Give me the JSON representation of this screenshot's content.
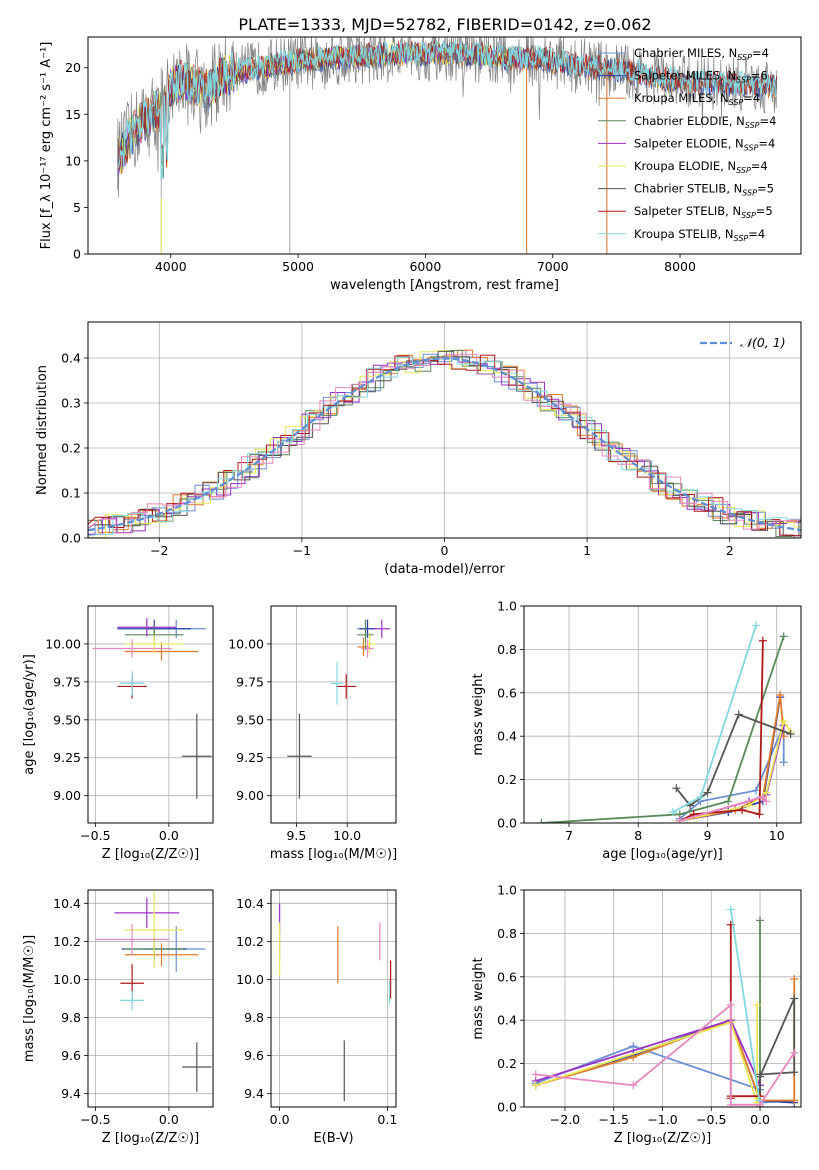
{
  "figure_title": "PLATE=1333, MJD=52782, FIBERID=0142, z=0.062",
  "colors": [
    "#6b8ed6",
    "#2a3fa0",
    "#e07b2a",
    "#5a8a5a",
    "#9b30c8",
    "#e8e85a",
    "#555555",
    "#b01818",
    "#80d8e0",
    "#e888c0"
  ],
  "legend_spectrum": [
    "Chabrier MILES, N",
    "Salpeter MILES, N",
    "Kroupa MILES, N",
    "Chabrier ELODIE, N",
    "Salpeter ELODIE, N",
    "Kroupa ELODIE, N",
    "Chabrier STELIB, N",
    "Salpeter STELIB, N",
    "Kroupa STELIB, N"
  ],
  "legend_spectrum_sub": "SSP",
  "legend_spectrum_n": [
    "4",
    "6",
    "4",
    "4",
    "4",
    "4",
    "5",
    "5",
    "4"
  ],
  "legend_hist": "𝒩(0, 1)",
  "chart_data": [
    {
      "type": "line",
      "xlabel": "wavelength [Angstrom, rest frame]",
      "ylabel": "Flux [f_λ 10⁻¹⁷ erg cm⁻² s⁻¹ A⁻¹]",
      "xlim": [
        3350,
        8950
      ],
      "ylim": [
        0,
        23.3
      ],
      "xticks": [
        "4000",
        "5000",
        "6000",
        "7000",
        "8000"
      ],
      "xtick_values": [
        4000,
        5000,
        6000,
        7000,
        8000
      ],
      "yticks": [
        "0",
        "5",
        "10",
        "15",
        "20"
      ],
      "ytick_values": [
        0,
        5,
        10,
        15,
        20
      ],
      "continuum_x": [
        3600,
        3700,
        3800,
        3900,
        3950,
        4000,
        4100,
        4200,
        4300,
        4400,
        4500,
        4700,
        4900,
        5200,
        5500,
        5800,
        6000,
        6300,
        6600,
        6900,
        7200,
        7500,
        7800,
        8000,
        8300,
        8600,
        8750
      ],
      "continuum_y": [
        10.5,
        13,
        14.5,
        15.5,
        16,
        18,
        18.5,
        18,
        17.5,
        19,
        19.5,
        20,
        20.5,
        21,
        21.2,
        21.5,
        21.5,
        21.5,
        21,
        21,
        20.2,
        19.8,
        19,
        18.5,
        18.3,
        18.1,
        18
      ]
    },
    {
      "type": "bar",
      "xlabel": "(data-model)/error",
      "ylabel": "Normed distribution",
      "xlim": [
        -2.5,
        2.5
      ],
      "ylim": [
        0,
        0.48
      ],
      "xticks": [
        "−2",
        "−1",
        "0",
        "1",
        "2"
      ],
      "xtick_values": [
        -2,
        -1,
        0,
        1,
        2
      ],
      "yticks": [
        "0.0",
        "0.1",
        "0.2",
        "0.3",
        "0.4"
      ],
      "ytick_values": [
        0,
        0.1,
        0.2,
        0.3,
        0.4
      ],
      "grid": true,
      "legend_position": "upper-right"
    },
    {
      "type": "scatter",
      "xlabel": "Z [log₁₀(Z/Z☉)]",
      "ylabel": "age  [log₁₀(age/yr)]",
      "xlim": [
        -0.55,
        0.3
      ],
      "ylim": [
        8.82,
        10.25
      ],
      "xticks": [
        "−0.5",
        "0.0"
      ],
      "xtick_values": [
        -0.5,
        0.0
      ],
      "yticks": [
        "9.00",
        "9.25",
        "9.50",
        "9.75",
        "10.00"
      ],
      "ytick_values": [
        9.0,
        9.25,
        9.5,
        9.75,
        10.0
      ],
      "points": [
        {
          "x": 0.05,
          "y": 10.1,
          "xerr": 0.2,
          "yerr": 0.06,
          "c": 0
        },
        {
          "x": -0.1,
          "y": 10.1,
          "xerr": 0.25,
          "yerr": 0.06,
          "c": 1
        },
        {
          "x": -0.05,
          "y": 9.95,
          "xerr": 0.25,
          "yerr": 0.06,
          "c": 2
        },
        {
          "x": -0.1,
          "y": 10.06,
          "xerr": 0.2,
          "yerr": 0.06,
          "c": 3
        },
        {
          "x": -0.15,
          "y": 10.11,
          "xerr": 0.2,
          "yerr": 0.06,
          "c": 4
        },
        {
          "x": -0.1,
          "y": 10.0,
          "xerr": 0.2,
          "yerr": 0.06,
          "c": 5
        },
        {
          "x": 0.19,
          "y": 9.26,
          "xerr": 0.1,
          "yerr": 0.28,
          "c": 6
        },
        {
          "x": -0.25,
          "y": 9.72,
          "xerr": 0.1,
          "yerr": 0.08,
          "c": 7
        },
        {
          "x": -0.25,
          "y": 9.74,
          "xerr": 0.08,
          "yerr": 0.08,
          "c": 8
        },
        {
          "x": -0.25,
          "y": 9.97,
          "xerr": 0.27,
          "yerr": 0.06,
          "c": 9
        }
      ]
    },
    {
      "type": "scatter",
      "xlabel": "mass [log₁₀(M/M☉)]",
      "ylabel": "",
      "xlim": [
        9.25,
        10.48
      ],
      "ylim": [
        8.82,
        10.25
      ],
      "xticks": [
        "9.5",
        "10.0"
      ],
      "xtick_values": [
        9.5,
        10.0
      ],
      "yticks": [
        "9.00",
        "9.25",
        "9.50",
        "9.75",
        "10.00"
      ],
      "ytick_values": [
        9.0,
        9.25,
        9.5,
        9.75,
        10.0
      ],
      "points": [
        {
          "x": 10.18,
          "y": 10.1,
          "xerr": 0.08,
          "yerr": 0.06,
          "c": 0
        },
        {
          "x": 10.2,
          "y": 10.1,
          "xerr": 0.08,
          "yerr": 0.06,
          "c": 1
        },
        {
          "x": 10.16,
          "y": 9.98,
          "xerr": 0.06,
          "yerr": 0.06,
          "c": 2
        },
        {
          "x": 10.18,
          "y": 10.06,
          "xerr": 0.08,
          "yerr": 0.1,
          "c": 3
        },
        {
          "x": 10.34,
          "y": 10.1,
          "xerr": 0.08,
          "yerr": 0.06,
          "c": 4
        },
        {
          "x": 10.22,
          "y": 10.0,
          "xerr": 0.06,
          "yerr": 0.06,
          "c": 5
        },
        {
          "x": 9.53,
          "y": 9.26,
          "xerr": 0.12,
          "yerr": 0.28,
          "c": 6
        },
        {
          "x": 9.99,
          "y": 9.72,
          "xerr": 0.1,
          "yerr": 0.08,
          "c": 7
        },
        {
          "x": 9.9,
          "y": 9.74,
          "xerr": 0.06,
          "yerr": 0.14,
          "c": 8
        },
        {
          "x": 10.2,
          "y": 9.97,
          "xerr": 0.06,
          "yerr": 0.06,
          "c": 9
        }
      ]
    },
    {
      "type": "line",
      "xlabel": "age  [log₁₀(age/yr)]",
      "ylabel": "mass weight",
      "xlim": [
        6.35,
        10.35
      ],
      "ylim": [
        0,
        1.0
      ],
      "xticks": [
        "7",
        "8",
        "9",
        "10"
      ],
      "xtick_values": [
        7,
        8,
        9,
        10
      ],
      "yticks": [
        "0.0",
        "0.2",
        "0.4",
        "0.6",
        "0.8",
        "1.0"
      ],
      "ytick_values": [
        0,
        0.2,
        0.4,
        0.6,
        0.8,
        1.0
      ],
      "series": [
        {
          "c": 0,
          "x": [
            8.6,
            8.9,
            9.7,
            10.1,
            10.1
          ],
          "y": [
            0.02,
            0.1,
            0.15,
            0.45,
            0.28
          ]
        },
        {
          "c": 1,
          "x": [
            8.6,
            9.3,
            9.8,
            10.05
          ],
          "y": [
            0.01,
            0.05,
            0.1,
            0.58
          ]
        },
        {
          "c": 2,
          "x": [
            8.6,
            9.4,
            9.8,
            10.05,
            10.1
          ],
          "y": [
            0.01,
            0.06,
            0.12,
            0.59,
            0.4
          ]
        },
        {
          "c": 3,
          "x": [
            6.6,
            8.6,
            9.3,
            10.1
          ],
          "y": [
            0.0,
            0.04,
            0.1,
            0.86
          ]
        },
        {
          "c": 4,
          "x": [
            8.6,
            9.6,
            9.85,
            10.1
          ],
          "y": [
            0.01,
            0.1,
            0.13,
            0.45
          ]
        },
        {
          "c": 5,
          "x": [
            8.6,
            9.6,
            9.85,
            10.1,
            10.2
          ],
          "y": [
            0.01,
            0.08,
            0.14,
            0.47,
            0.42
          ]
        },
        {
          "c": 6,
          "x": [
            8.55,
            8.75,
            9.0,
            9.45,
            10.2
          ],
          "y": [
            0.16,
            0.08,
            0.14,
            0.5,
            0.41
          ]
        },
        {
          "c": 7,
          "x": [
            8.6,
            8.8,
            9.5,
            9.75,
            9.8
          ],
          "y": [
            0.01,
            0.04,
            0.06,
            0.04,
            0.84
          ]
        },
        {
          "c": 8,
          "x": [
            8.5,
            8.9,
            9.7
          ],
          "y": [
            0.05,
            0.12,
            0.91
          ]
        },
        {
          "c": 9,
          "x": [
            8.6,
            9.8,
            9.85
          ],
          "y": [
            0.01,
            0.12,
            0.1
          ]
        }
      ]
    },
    {
      "type": "scatter",
      "xlabel": "Z [log₁₀(Z/Z☉)]",
      "ylabel": "mass [log₁₀(M/M☉)]",
      "xlim": [
        -0.55,
        0.3
      ],
      "ylim": [
        9.33,
        10.47
      ],
      "xticks": [
        "−0.5",
        "0.0"
      ],
      "xtick_values": [
        -0.5,
        0.0
      ],
      "yticks": [
        "9.4",
        "9.6",
        "9.8",
        "10.0",
        "10.2",
        "10.4"
      ],
      "ytick_values": [
        9.4,
        9.6,
        9.8,
        10.0,
        10.2,
        10.4
      ],
      "points": [
        {
          "x": 0.05,
          "y": 10.16,
          "xerr": 0.2,
          "yerr": 0.12,
          "c": 0
        },
        {
          "x": -0.1,
          "y": 10.16,
          "xerr": 0.22,
          "yerr": 0.06,
          "c": 1
        },
        {
          "x": -0.05,
          "y": 10.13,
          "xerr": 0.25,
          "yerr": 0.06,
          "c": 2
        },
        {
          "x": -0.1,
          "y": 10.16,
          "xerr": 0.2,
          "yerr": 0.06,
          "c": 3
        },
        {
          "x": -0.15,
          "y": 10.35,
          "xerr": 0.22,
          "yerr": 0.08,
          "c": 4
        },
        {
          "x": -0.1,
          "y": 10.26,
          "xerr": 0.2,
          "yerr": 0.2,
          "c": 5
        },
        {
          "x": 0.19,
          "y": 9.54,
          "xerr": 0.1,
          "yerr": 0.13,
          "c": 6
        },
        {
          "x": -0.25,
          "y": 9.98,
          "xerr": 0.08,
          "yerr": 0.1,
          "c": 7
        },
        {
          "x": -0.25,
          "y": 9.89,
          "xerr": 0.08,
          "yerr": 0.05,
          "c": 8
        },
        {
          "x": -0.25,
          "y": 10.21,
          "xerr": 0.25,
          "yerr": 0.08,
          "c": 9
        }
      ]
    },
    {
      "type": "scatter",
      "xlabel": "E(B-V)",
      "ylabel": "",
      "xlim": [
        -0.008,
        0.108
      ],
      "ylim": [
        9.33,
        10.47
      ],
      "xticks": [
        "0.0",
        "0.1"
      ],
      "xtick_values": [
        0.0,
        0.1
      ],
      "yticks": [
        "9.4",
        "9.6",
        "9.8",
        "10.0",
        "10.2",
        "10.4"
      ],
      "ytick_values": [
        9.4,
        9.6,
        9.8,
        10.0,
        10.2,
        10.4
      ],
      "points": [
        {
          "x": 0.0,
          "y": 10.2,
          "xerr": 0.0,
          "yerr": 0.08,
          "c": 0
        },
        {
          "x": 0.054,
          "y": 10.13,
          "xerr": 0.0,
          "yerr": 0.15,
          "c": 2
        },
        {
          "x": 0.0,
          "y": 10.32,
          "xerr": 0.0,
          "yerr": 0.08,
          "c": 4
        },
        {
          "x": 0.0,
          "y": 10.16,
          "xerr": 0.0,
          "yerr": 0.14,
          "c": 5
        },
        {
          "x": 0.06,
          "y": 9.52,
          "xerr": 0.0,
          "yerr": 0.16,
          "c": 6
        },
        {
          "x": 0.103,
          "y": 10.0,
          "xerr": 0.0,
          "yerr": 0.1,
          "c": 7
        },
        {
          "x": 0.102,
          "y": 9.93,
          "xerr": 0.0,
          "yerr": 0.06,
          "c": 8
        },
        {
          "x": 0.093,
          "y": 10.2,
          "xerr": 0.0,
          "yerr": 0.1,
          "c": 9
        }
      ]
    },
    {
      "type": "line",
      "xlabel": "Z [log₁₀(Z/Z☉)]",
      "ylabel": "mass weight",
      "xlim": [
        -2.42,
        0.42
      ],
      "ylim": [
        0,
        1.0
      ],
      "xticks": [
        "−2.0",
        "−1.5",
        "−1.0",
        "−0.5",
        "0.0"
      ],
      "xtick_values": [
        -2.0,
        -1.5,
        -1.0,
        -0.5,
        0.0
      ],
      "yticks": [
        "0.0",
        "0.2",
        "0.4",
        "0.6",
        "0.8",
        "1.0"
      ],
      "ytick_values": [
        0,
        0.2,
        0.4,
        0.6,
        0.8,
        1.0
      ],
      "series": [
        {
          "c": 0,
          "x": [
            -2.3,
            -1.3,
            0.0,
            0.0,
            0.35
          ],
          "y": [
            0.11,
            0.28,
            0.08,
            0.02,
            0.03
          ]
        },
        {
          "c": 1,
          "x": [
            -2.3,
            -1.3,
            -0.3,
            0.0,
            0.35
          ],
          "y": [
            0.1,
            0.24,
            0.4,
            0.03,
            0.02
          ]
        },
        {
          "c": 2,
          "x": [
            -2.3,
            -1.3,
            -0.3,
            0.0,
            0.35,
            0.35
          ],
          "y": [
            0.1,
            0.23,
            0.4,
            0.03,
            0.03,
            0.59
          ]
        },
        {
          "c": 3,
          "x": [
            0.0,
            0.0,
            0.0
          ],
          "y": [
            0.86,
            0.1,
            0.0
          ]
        },
        {
          "c": 4,
          "x": [
            -2.3,
            -0.3,
            0.0
          ],
          "y": [
            0.12,
            0.4,
            0.1
          ]
        },
        {
          "c": 5,
          "x": [
            -2.3,
            -0.3,
            -0.03,
            -0.03
          ],
          "y": [
            0.1,
            0.39,
            0.02,
            0.47
          ]
        },
        {
          "c": 6,
          "x": [
            0.0,
            0.35,
            0.35,
            0.0,
            0.0
          ],
          "y": [
            0.15,
            0.16,
            0.5,
            0.14,
            0.05
          ]
        },
        {
          "c": 7,
          "x": [
            -0.3,
            -0.3,
            -0.3,
            0.0,
            0.0
          ],
          "y": [
            0.84,
            0.04,
            0.05,
            0.05,
            0.0
          ]
        },
        {
          "c": 8,
          "x": [
            -0.3,
            -0.0,
            0.0
          ],
          "y": [
            0.91,
            0.01,
            0.03
          ]
        },
        {
          "c": 9,
          "x": [
            -2.3,
            -1.3,
            -0.3,
            -0.3,
            0.0,
            0.35
          ],
          "y": [
            0.15,
            0.1,
            0.47,
            0.01,
            0.01,
            0.25
          ]
        }
      ]
    }
  ]
}
